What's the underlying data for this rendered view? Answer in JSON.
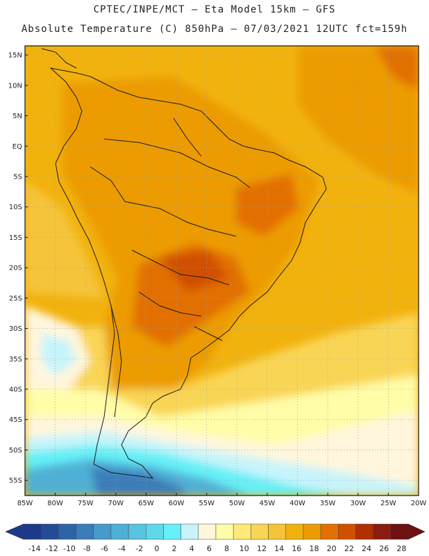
{
  "header": {
    "line1": "CPTEC/INPE/MCT –   Eta Model 15km – GFS",
    "line2": "Absolute Temperature (C) 850hPa – 07/03/2021 12UTC fct=159h"
  },
  "map": {
    "lat_labels": [
      "15N",
      "10N",
      "5N",
      "EQ",
      "5S",
      "10S",
      "15S",
      "20S",
      "25S",
      "30S",
      "35S",
      "40S",
      "45S",
      "50S",
      "55S"
    ],
    "lat_values": [
      15,
      10,
      5,
      0,
      -5,
      -10,
      -15,
      -20,
      -25,
      -30,
      -35,
      -40,
      -45,
      -50,
      -55
    ],
    "lon_labels": [
      "85W",
      "80W",
      "75W",
      "70W",
      "65W",
      "60W",
      "55W",
      "50W",
      "45W",
      "40W",
      "35W",
      "30W",
      "25W",
      "20W"
    ],
    "lon_values": [
      -85,
      -80,
      -75,
      -70,
      -65,
      -60,
      -55,
      -50,
      -45,
      -40,
      -35,
      -30,
      -25,
      -20
    ],
    "extent": {
      "lon_min": -85,
      "lon_max": -20,
      "lat_min": -57.5,
      "lat_max": 16.5
    }
  },
  "colorbar": {
    "labels": [
      "-14",
      "-12",
      "-10",
      "-8",
      "-6",
      "-4",
      "-2",
      "0",
      "2",
      "4",
      "6",
      "8",
      "10",
      "12",
      "14",
      "16",
      "18",
      "20",
      "22",
      "24",
      "26",
      "28"
    ],
    "colors": [
      "#1d3a8a",
      "#234c98",
      "#2d64a8",
      "#3a7dba",
      "#459bc9",
      "#4fb0d6",
      "#57c4e0",
      "#5fd7eb",
      "#66f0f7",
      "#c7f4fb",
      "#fff6dd",
      "#fffda8",
      "#ffe97a",
      "#f9d555",
      "#f5c43a",
      "#f2b20e",
      "#ec9b06",
      "#e27004",
      "#d05000",
      "#b03000",
      "#8c1c10",
      "#6e1110"
    ]
  }
}
